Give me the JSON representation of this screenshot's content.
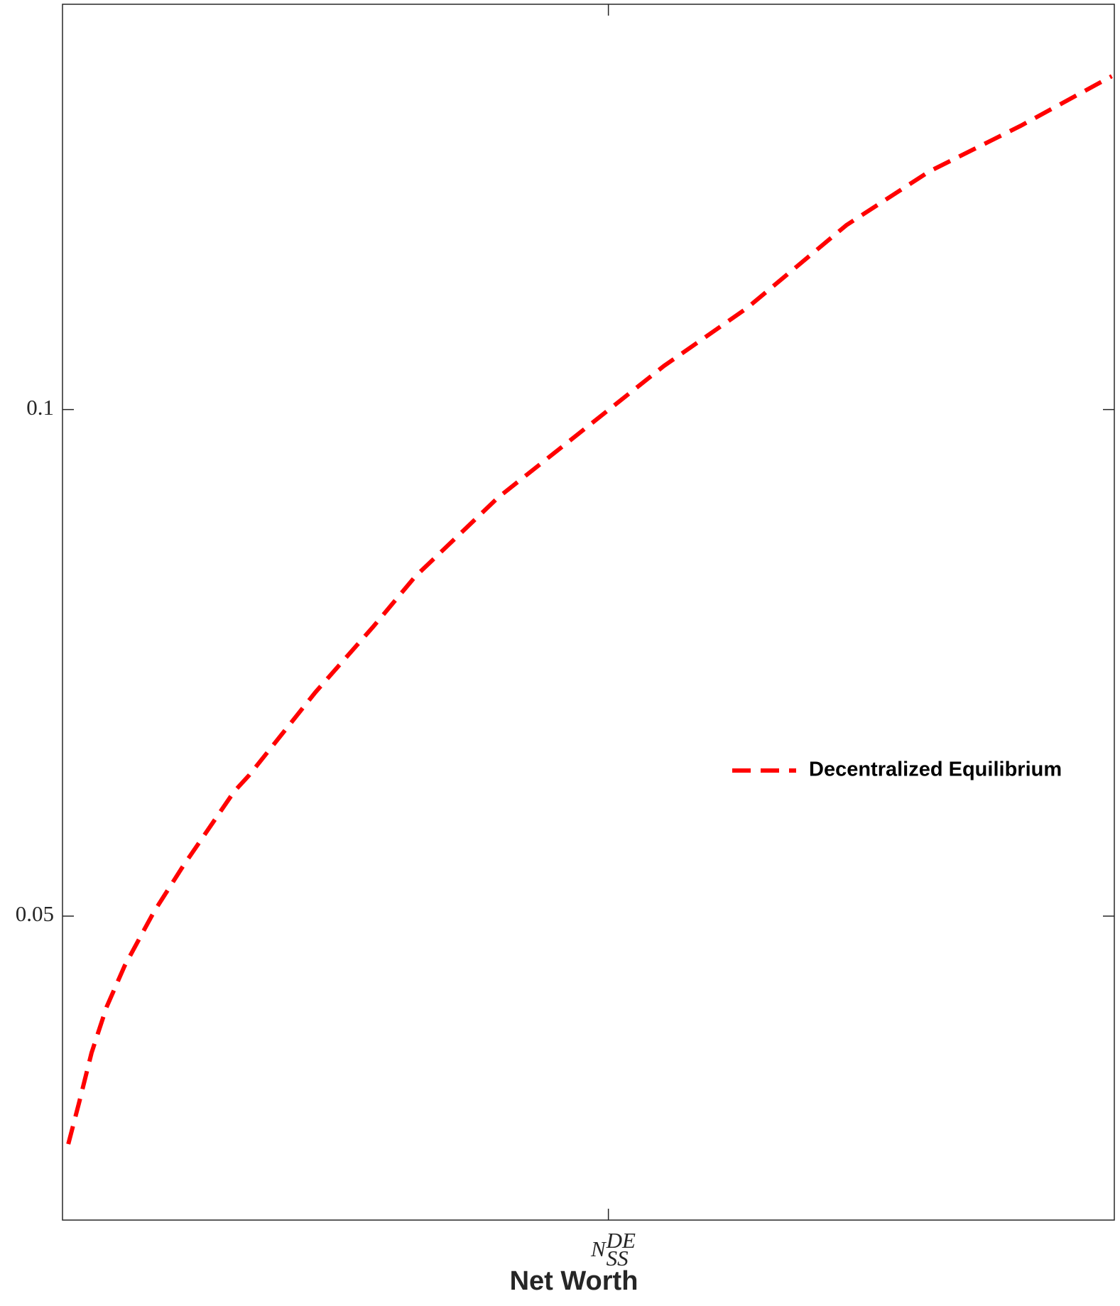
{
  "chart_data": {
    "type": "line",
    "xlabel": "Net Worth",
    "xlim": [
      0,
      1
    ],
    "xticks": [
      {
        "value": 0.519,
        "label": "N",
        "superscript": "DE",
        "subscript": "SS"
      }
    ],
    "ylim": [
      0.02,
      0.14
    ],
    "yticks": [
      0.05,
      0.1
    ],
    "legend": "east",
    "grid": false,
    "series": [
      {
        "name": "Decentralized Equilibrium",
        "color": "#ff0000",
        "x": [
          0.0055,
          0.0158,
          0.0276,
          0.0418,
          0.0591,
          0.0868,
          0.1144,
          0.1632,
          0.1774,
          0.2405,
          0.2957,
          0.3352,
          0.414,
          0.4929,
          0.5718,
          0.6506,
          0.7453,
          0.8241,
          0.9109,
          0.9976
        ],
        "values": [
          0.0275,
          0.0316,
          0.0365,
          0.041,
          0.0451,
          0.0504,
          0.0549,
          0.0623,
          0.0639,
          0.0721,
          0.0786,
          0.0835,
          0.0913,
          0.0978,
          0.1043,
          0.11,
          0.1182,
          0.1235,
          0.128,
          0.1329
        ]
      }
    ]
  }
}
